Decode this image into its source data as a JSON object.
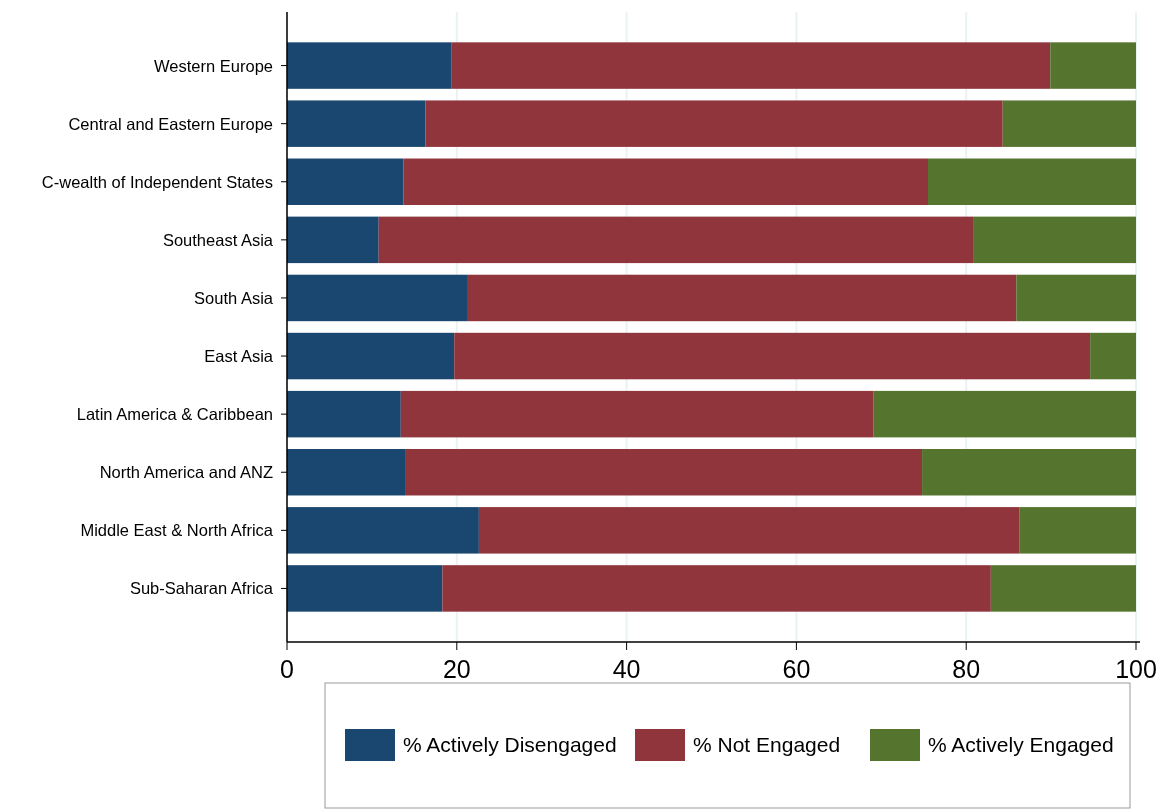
{
  "chart_data": {
    "type": "bar",
    "orientation": "horizontal",
    "stacked": true,
    "categories": [
      "Western Europe",
      "Central and Eastern Europe",
      "C-wealth of Independent States",
      "Southeast Asia",
      "South Asia",
      "East Asia",
      "Latin America & Caribbean",
      "North America and ANZ",
      "Middle East & North Africa",
      "Sub-Saharan Africa"
    ],
    "series": [
      {
        "name": "% Actively Disengaged",
        "color": "#1a476f",
        "values": [
          19.4,
          16.3,
          13.7,
          10.8,
          21.2,
          19.7,
          13.4,
          14.0,
          22.6,
          18.3
        ]
      },
      {
        "name": "% Not Engaged",
        "color": "#90353b",
        "values": [
          70.5,
          68.0,
          61.8,
          70.1,
          64.7,
          74.9,
          55.7,
          60.8,
          63.7,
          64.6
        ]
      },
      {
        "name": "% Actively Engaged",
        "color": "#55752f",
        "values": [
          10.1,
          15.7,
          24.5,
          19.1,
          14.1,
          5.4,
          30.9,
          25.2,
          13.7,
          17.1
        ]
      }
    ],
    "xlim": [
      0,
      100
    ],
    "xticks": [
      0,
      20,
      40,
      60,
      80,
      100
    ],
    "grid": "x",
    "legend": "bottom"
  }
}
